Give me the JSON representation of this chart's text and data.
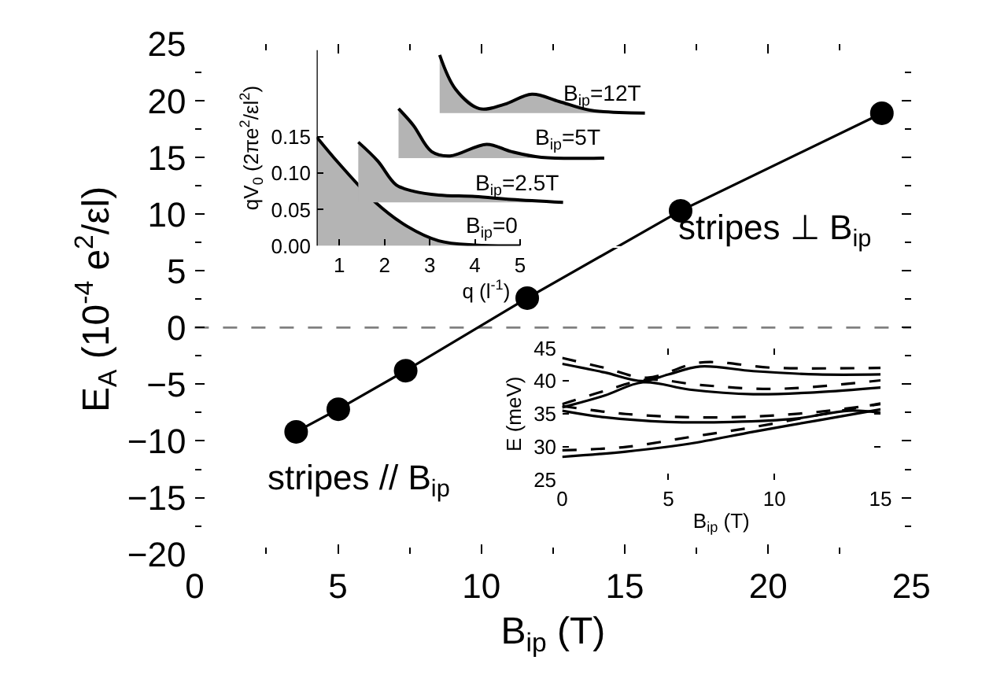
{
  "chart_data": [
    {
      "type": "line",
      "xlabel": "B$_{ip}$ (T)",
      "ylabel": "E$_{A}$ (10$^{-4}$ e$^{2}$/εl)",
      "x": [
        3.54,
        5.01,
        7.36,
        11.6,
        16.95,
        23.97
      ],
      "xlim": [
        0,
        25
      ],
      "ylim": [
        -20,
        25
      ],
      "xticks": [
        0,
        5,
        10,
        15,
        20,
        25
      ],
      "yticks": [
        {
          "value": -20,
          "label": "−20"
        },
        {
          "value": -15,
          "label": "−15"
        },
        {
          "value": -10,
          "label": "−10"
        },
        {
          "value": -5,
          "label": "−5"
        },
        0,
        5,
        10,
        15,
        20,
        25
      ],
      "marker": "circle",
      "line_style": "solid",
      "grid": false,
      "series": [
        {
          "color": "#000000",
          "values": [
            -9.2,
            -7.2,
            -3.8,
            2.6,
            10.3,
            18.9
          ]
        }
      ],
      "ref_lines": [
        {
          "axis": "y",
          "value": 0,
          "color": "#808080",
          "line_style": "dashed"
        }
      ],
      "annotations": [
        "stripes ⊥ B$_{ip}$",
        "stripes // B$_{ip}$"
      ]
    },
    {
      "type": "area",
      "xlabel": "q (l$^{-1}$)",
      "ylabel": "qV$_{0}$ (2πe$^{2}$/εl$^{2}$)",
      "xlim": [
        0.5,
        8
      ],
      "ylim": [
        0,
        0.27
      ],
      "xticks": [
        1,
        2,
        3,
        4,
        5
      ],
      "yticks": [
        {
          "value": 0,
          "label": "0.00"
        },
        {
          "value": 0.05,
          "label": "0.05"
        },
        {
          "value": 0.1,
          "label": "0.10"
        },
        {
          "value": 0.15,
          "label": "0.15"
        }
      ],
      "grid": false,
      "marker": "none",
      "series": [
        {
          "name": "B$_{ip}$=0",
          "color": "#000000",
          "x": [
            0.5,
            1.0,
            1.8,
            2.5,
            3.2,
            4.0,
            5.0
          ],
          "values": [
            0.15,
            0.113,
            0.06,
            0.027,
            0.007,
            0.001,
            0.0
          ]
        },
        {
          "name": "B$_{ip}$=2.5T",
          "color": "#000000",
          "x": [
            1.42,
            1.85,
            2.26,
            2.66,
            3.2,
            4.0,
            4.8,
            5.95
          ],
          "values": [
            0.143,
            0.117,
            0.084,
            0.075,
            0.07,
            0.068,
            0.064,
            0.06
          ]
        },
        {
          "name": "B$_{ip}$=5T",
          "color": "#000000",
          "x": [
            2.31,
            2.64,
            3.04,
            3.45,
            4.26,
            4.8,
            5.47,
            6.86
          ],
          "values": [
            0.189,
            0.166,
            0.13,
            0.124,
            0.14,
            0.13,
            0.122,
            0.121
          ]
        },
        {
          "name": "B$_{ip}$=12T",
          "color": "#000000",
          "x": [
            3.22,
            3.57,
            4.1,
            4.65,
            5.26,
            5.86,
            6.54,
            7.76
          ],
          "values": [
            0.263,
            0.216,
            0.189,
            0.195,
            0.209,
            0.199,
            0.187,
            0.183
          ]
        }
      ]
    },
    {
      "type": "line",
      "xlabel": "B$_{ip}$ (T)",
      "ylabel": "E (meV)",
      "xlim": [
        0,
        15
      ],
      "ylim": [
        25,
        45
      ],
      "xticks": [
        0,
        5,
        10,
        15
      ],
      "yticks": [
        25,
        30,
        35,
        40,
        45
      ],
      "grid": false,
      "marker": "none",
      "series": [
        {
          "color": "#000000",
          "line_style": "solid",
          "x": [
            0,
            2,
            3.8,
            6,
            9,
            12,
            15
          ],
          "values": [
            36,
            37.8,
            39.8,
            38.7,
            38,
            38.3,
            39
          ]
        },
        {
          "color": "#000000",
          "line_style": "solid",
          "x": [
            0,
            2,
            3.8,
            5,
            6.5,
            9,
            12,
            15
          ],
          "values": [
            42.6,
            41.3,
            40,
            41,
            42.2,
            41.5,
            41,
            41
          ]
        },
        {
          "color": "#000000",
          "line_style": "dashed",
          "x": [
            0,
            2,
            4,
            6.5,
            10,
            15
          ],
          "values": [
            36.5,
            38.5,
            40.2,
            39.4,
            38.8,
            40.1
          ]
        },
        {
          "color": "#000000",
          "line_style": "dashed",
          "x": [
            0,
            2,
            4,
            6.5,
            10,
            15
          ],
          "values": [
            43.5,
            42,
            40.5,
            42.8,
            42,
            42
          ]
        },
        {
          "color": "#000000",
          "line_style": "solid",
          "x": [
            0,
            2,
            5,
            8,
            11,
            13.5,
            15
          ],
          "values": [
            35.5,
            34.5,
            33.8,
            33.8,
            34.3,
            35.5,
            35.2
          ]
        },
        {
          "color": "#000000",
          "line_style": "dashed",
          "x": [
            0,
            3,
            6,
            9,
            12,
            15
          ],
          "values": [
            36.2,
            35,
            34.5,
            34.6,
            35.3,
            36.5
          ]
        },
        {
          "color": "#000000",
          "line_style": "solid",
          "x": [
            0,
            3,
            6,
            9,
            12,
            15
          ],
          "values": [
            28.5,
            29.3,
            30.5,
            32.3,
            34,
            35.7
          ]
        },
        {
          "color": "#000000",
          "line_style": "dashed",
          "x": [
            0,
            3,
            6,
            9,
            12,
            15
          ],
          "values": [
            29.5,
            30,
            31.5,
            33,
            34.8,
            36.6
          ]
        }
      ]
    }
  ]
}
